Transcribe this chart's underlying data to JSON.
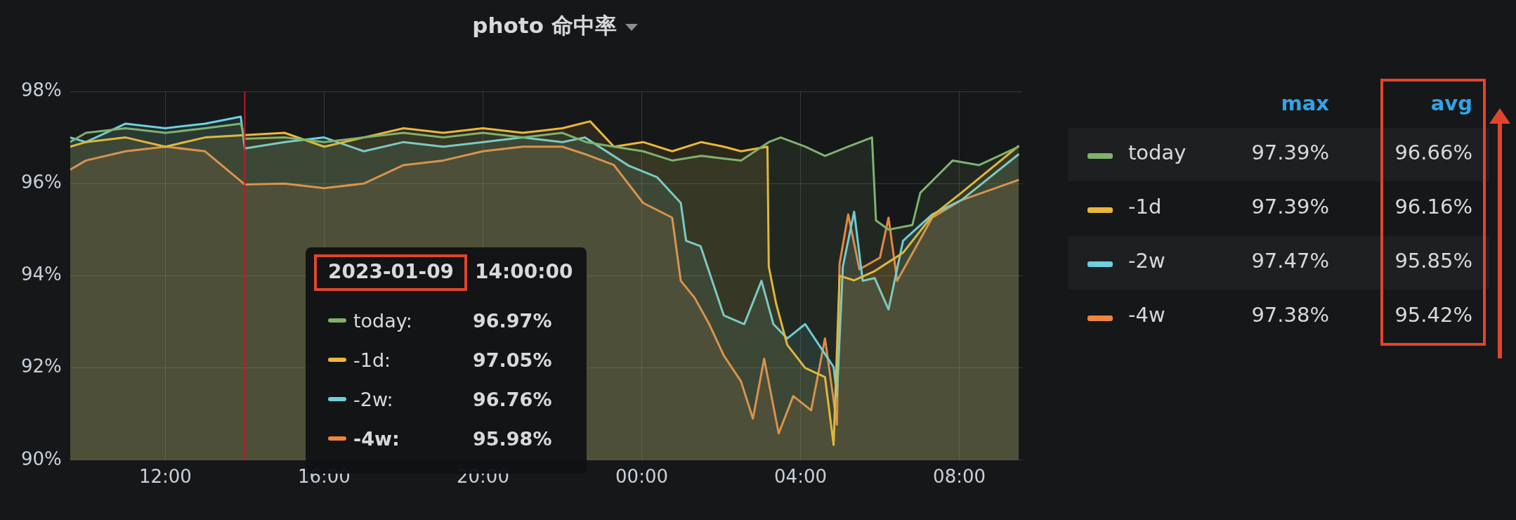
{
  "chart_data": {
    "type": "area",
    "title": "photo 命中率",
    "xlim": [
      "2023-01-09T09:36",
      "2023-01-10T09:36"
    ],
    "xticks": [
      {
        "value": "2023-01-09T12:00",
        "label": "12:00"
      },
      {
        "value": "2023-01-09T16:00",
        "label": "16:00"
      },
      {
        "value": "2023-01-09T20:00",
        "label": "20:00"
      },
      {
        "value": "2023-01-10T00:00",
        "label": "00:00"
      },
      {
        "value": "2023-01-10T04:00",
        "label": "04:00"
      },
      {
        "value": "2023-01-10T08:00",
        "label": "08:00"
      }
    ],
    "ylim": [
      90,
      98
    ],
    "yticks": [
      {
        "value": 90,
        "label": "90%"
      },
      {
        "value": 92,
        "label": "92%"
      },
      {
        "value": 94,
        "label": "94%"
      },
      {
        "value": 96,
        "label": "96%"
      },
      {
        "value": 98,
        "label": "98%"
      }
    ],
    "grid": true,
    "legend": "right",
    "ref_lines": [
      {
        "axis": "x",
        "value": "2023-01-09T14:00",
        "label": null,
        "color": "#c4162a"
      }
    ],
    "series": [
      {
        "name": "today",
        "color": "#7eb26d",
        "x": [
          "2023-01-09T09:36",
          "2023-01-09T10:00",
          "2023-01-09T11:00",
          "2023-01-09T12:00",
          "2023-01-09T13:00",
          "2023-01-09T13:54",
          "2023-01-09T14:00",
          "2023-01-09T15:00",
          "2023-01-09T16:00",
          "2023-01-09T17:00",
          "2023-01-09T18:00",
          "2023-01-09T19:00",
          "2023-01-09T20:00",
          "2023-01-09T21:00",
          "2023-01-09T22:00",
          "2023-01-09T22:36",
          "2023-01-09T23:18",
          "2023-01-10T00:02",
          "2023-01-10T00:46",
          "2023-01-10T01:30",
          "2023-01-10T02:30",
          "2023-01-10T03:12",
          "2023-01-10T03:30",
          "2023-01-10T04:07",
          "2023-01-10T04:37",
          "2023-01-10T05:12",
          "2023-01-10T05:30",
          "2023-01-10T05:48",
          "2023-01-10T05:54",
          "2023-01-10T06:13",
          "2023-01-10T06:49",
          "2023-01-10T07:01",
          "2023-01-10T07:50",
          "2023-01-10T08:30",
          "2023-01-10T09:30"
        ],
        "values": [
          96.9,
          97.1,
          97.2,
          97.1,
          97.2,
          97.3,
          96.97,
          97.0,
          96.9,
          97.0,
          97.1,
          97.0,
          97.1,
          97.0,
          97.1,
          96.9,
          96.8,
          96.7,
          96.5,
          96.6,
          96.5,
          96.9,
          97.0,
          96.8,
          96.6,
          96.8,
          96.9,
          97.0,
          95.2,
          95.0,
          95.1,
          95.8,
          96.5,
          96.4,
          96.8
        ]
      },
      {
        "name": "-1d",
        "color": "#eab839",
        "x": [
          "2023-01-09T09:36",
          "2023-01-09T10:00",
          "2023-01-09T11:00",
          "2023-01-09T12:00",
          "2023-01-09T13:00",
          "2023-01-09T14:00",
          "2023-01-09T15:00",
          "2023-01-09T16:00",
          "2023-01-09T17:00",
          "2023-01-09T18:00",
          "2023-01-09T19:00",
          "2023-01-09T20:00",
          "2023-01-09T21:00",
          "2023-01-09T22:00",
          "2023-01-09T22:42",
          "2023-01-09T23:18",
          "2023-01-10T00:02",
          "2023-01-10T00:46",
          "2023-01-10T01:30",
          "2023-01-10T02:04",
          "2023-01-10T02:30",
          "2023-01-10T03:10",
          "2023-01-10T03:12",
          "2023-01-10T03:23",
          "2023-01-10T03:40",
          "2023-01-10T04:07",
          "2023-01-10T04:37",
          "2023-01-10T04:50",
          "2023-01-10T04:59",
          "2023-01-10T05:21",
          "2023-01-10T05:52",
          "2023-01-10T06:35",
          "2023-01-10T07:19",
          "2023-01-10T08:03",
          "2023-01-10T09:30"
        ],
        "values": [
          96.8,
          96.9,
          97.0,
          96.8,
          97.0,
          97.05,
          97.1,
          96.8,
          97.0,
          97.2,
          97.1,
          97.2,
          97.1,
          97.2,
          97.35,
          96.8,
          96.9,
          96.7,
          96.9,
          96.8,
          96.7,
          96.8,
          94.2,
          93.4,
          92.5,
          92.0,
          91.8,
          90.33,
          94.0,
          93.9,
          94.1,
          94.5,
          95.3,
          95.8,
          96.82
        ]
      },
      {
        "name": "-2w",
        "color": "#6ed0e0",
        "x": [
          "2023-01-09T09:36",
          "2023-01-09T10:00",
          "2023-01-09T11:00",
          "2023-01-09T12:00",
          "2023-01-09T13:00",
          "2023-01-09T13:54",
          "2023-01-09T14:00",
          "2023-01-09T15:00",
          "2023-01-09T16:00",
          "2023-01-09T17:00",
          "2023-01-09T18:00",
          "2023-01-09T19:00",
          "2023-01-09T20:00",
          "2023-01-09T21:00",
          "2023-01-09T22:00",
          "2023-01-09T22:34",
          "2023-01-09T23:40",
          "2023-01-10T00:23",
          "2023-01-10T00:59",
          "2023-01-10T01:07",
          "2023-01-10T01:29",
          "2023-01-10T02:04",
          "2023-01-10T02:35",
          "2023-01-10T03:01",
          "2023-01-10T03:19",
          "2023-01-10T03:40",
          "2023-01-10T04:07",
          "2023-01-10T04:50",
          "2023-01-10T04:55",
          "2023-01-10T05:04",
          "2023-01-10T05:21",
          "2023-01-10T05:34",
          "2023-01-10T05:52",
          "2023-01-10T06:13",
          "2023-01-10T06:35",
          "2023-01-10T07:19",
          "2023-01-10T08:03",
          "2023-01-10T09:30"
        ],
        "values": [
          97.0,
          96.9,
          97.3,
          97.2,
          97.3,
          97.45,
          96.76,
          96.9,
          97.0,
          96.7,
          96.9,
          96.8,
          96.9,
          97.0,
          96.9,
          97.0,
          96.39,
          96.14,
          95.58,
          94.76,
          94.64,
          93.14,
          92.95,
          93.89,
          92.95,
          92.64,
          92.95,
          92.02,
          91.39,
          94.2,
          95.39,
          93.89,
          93.95,
          93.27,
          94.76,
          95.33,
          95.64,
          96.64
        ]
      },
      {
        "name": "-4w",
        "color": "#ef843c",
        "x": [
          "2023-01-09T09:36",
          "2023-01-09T10:00",
          "2023-01-09T11:00",
          "2023-01-09T12:00",
          "2023-01-09T13:00",
          "2023-01-09T14:00",
          "2023-01-09T15:00",
          "2023-01-09T16:00",
          "2023-01-09T17:00",
          "2023-01-09T18:00",
          "2023-01-09T19:00",
          "2023-01-09T20:00",
          "2023-01-09T21:00",
          "2023-01-09T22:00",
          "2023-01-09T22:34",
          "2023-01-09T23:18",
          "2023-01-10T00:02",
          "2023-01-10T00:46",
          "2023-01-10T00:59",
          "2023-01-10T01:20",
          "2023-01-10T01:42",
          "2023-01-10T02:04",
          "2023-01-10T02:30",
          "2023-01-10T02:48",
          "2023-01-10T03:05",
          "2023-01-10T03:27",
          "2023-01-10T03:49",
          "2023-01-10T04:16",
          "2023-01-10T04:37",
          "2023-01-10T04:55",
          "2023-01-10T04:59",
          "2023-01-10T05:12",
          "2023-01-10T05:29",
          "2023-01-10T06:00",
          "2023-01-10T06:13",
          "2023-01-10T06:26",
          "2023-01-10T07:19",
          "2023-01-10T08:03",
          "2023-01-10T09:30"
        ],
        "values": [
          96.3,
          96.5,
          96.7,
          96.8,
          96.7,
          95.98,
          96.0,
          95.9,
          96.0,
          96.4,
          96.5,
          96.7,
          96.8,
          96.8,
          96.64,
          96.4,
          95.58,
          95.26,
          93.89,
          93.52,
          92.95,
          92.27,
          91.71,
          90.9,
          92.2,
          90.58,
          91.39,
          91.08,
          92.64,
          90.77,
          94.26,
          95.33,
          94.14,
          94.39,
          95.26,
          93.89,
          95.26,
          95.64,
          96.08
        ]
      }
    ],
    "annotations": [
      "2023-01-09",
      "14:00:00",
      "today:",
      "96.97%",
      "-1d:",
      "97.05%",
      "-2w:",
      "96.76%",
      "-4w:",
      "95.98%",
      "max",
      "avg",
      "97.39%",
      "96.66%",
      "97.39%",
      "96.16%",
      "97.47%",
      "95.85%",
      "97.38%",
      "95.42%"
    ]
  }
}
